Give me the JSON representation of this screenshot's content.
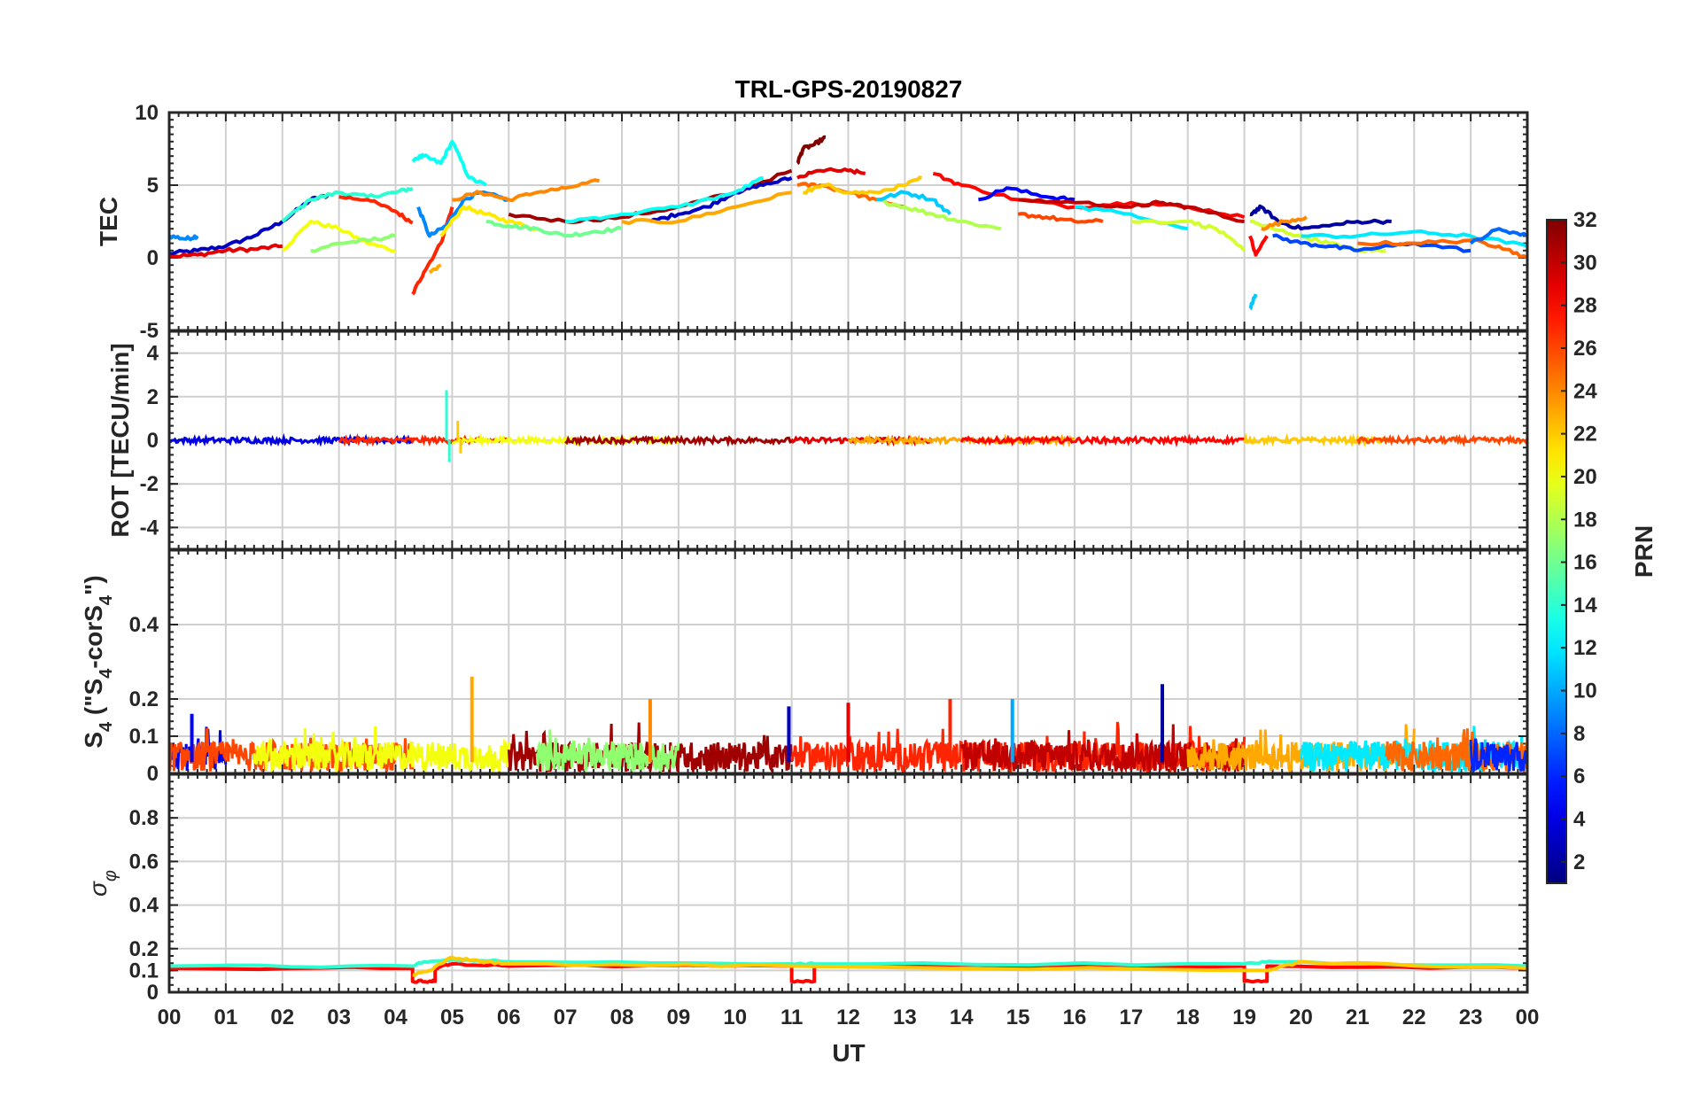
{
  "chart_data": [
    {
      "type": "line",
      "panel": "tec",
      "title": "TRL-GPS-20190827",
      "ylabel": "TEC",
      "ylim": [
        -5,
        10
      ],
      "yticks": [
        "-5",
        "0",
        "5",
        "10"
      ],
      "series": [
        {
          "prn": 3,
          "x": [
            0.0,
            0.5,
            1.0,
            1.5,
            2.0,
            2.5,
            2.8
          ],
          "y": [
            0.3,
            0.5,
            0.8,
            1.5,
            2.5,
            4.0,
            4.3
          ]
        },
        {
          "prn": 9,
          "x": [
            0.0,
            0.3,
            0.5
          ],
          "y": [
            1.5,
            1.3,
            1.5
          ]
        },
        {
          "prn": 29,
          "x": [
            0.0,
            0.5,
            1.0,
            1.5,
            2.0
          ],
          "y": [
            0.1,
            0.2,
            0.5,
            0.6,
            0.8
          ]
        },
        {
          "prn": 14,
          "x": [
            2.0,
            2.5,
            3.0,
            3.5,
            4.0,
            4.3
          ],
          "y": [
            2.5,
            4.0,
            4.5,
            4.2,
            4.5,
            4.8
          ]
        },
        {
          "prn": 27,
          "x": [
            3.0,
            3.5,
            4.0,
            4.3
          ],
          "y": [
            4.2,
            4.0,
            3.2,
            2.4
          ]
        },
        {
          "prn": 20,
          "x": [
            2.0,
            2.5,
            3.0,
            3.5,
            4.0
          ],
          "y": [
            0.5,
            2.5,
            2.0,
            1.0,
            0.5
          ]
        },
        {
          "prn": 17,
          "x": [
            2.5,
            3.0,
            3.5,
            4.0
          ],
          "y": [
            0.5,
            1.0,
            1.2,
            1.5
          ]
        },
        {
          "prn": 13,
          "x": [
            4.3,
            4.5,
            4.8,
            5.0,
            5.3,
            5.6
          ],
          "y": [
            6.8,
            7.0,
            6.5,
            8.0,
            5.5,
            5.0
          ]
        },
        {
          "prn": 27,
          "x": [
            4.3,
            4.5,
            4.8,
            5.0
          ],
          "y": [
            -2.5,
            -1.0,
            1.0,
            3.5
          ]
        },
        {
          "prn": 23,
          "x": [
            4.6,
            4.8
          ],
          "y": [
            -1.0,
            -0.5
          ]
        },
        {
          "prn": 9,
          "x": [
            4.4,
            4.6,
            4.9,
            5.2,
            5.5,
            6.0
          ],
          "y": [
            3.5,
            1.5,
            2.2,
            4.0,
            4.5,
            4.0
          ]
        },
        {
          "prn": 21,
          "x": [
            4.8,
            5.2,
            5.6,
            6.0,
            6.5
          ],
          "y": [
            1.5,
            3.5,
            3.0,
            2.5,
            2.0
          ]
        },
        {
          "prn": 16,
          "x": [
            5.6,
            6.0,
            6.5,
            7.0,
            7.5,
            8.0
          ],
          "y": [
            2.5,
            2.2,
            2.0,
            1.5,
            1.8,
            2.0
          ]
        },
        {
          "prn": 24,
          "x": [
            5.0,
            5.5,
            6.0,
            6.5,
            7.0,
            7.6
          ],
          "y": [
            4.0,
            4.5,
            4.0,
            4.5,
            4.8,
            5.3
          ]
        },
        {
          "prn": 31,
          "x": [
            6.0,
            7.0,
            8.0,
            9.0,
            10.0,
            11.0
          ],
          "y": [
            3.0,
            2.5,
            2.8,
            3.5,
            4.5,
            6.0
          ]
        },
        {
          "prn": 3,
          "x": [
            8.5,
            9.0,
            9.5,
            10.0,
            10.5,
            11.0
          ],
          "y": [
            2.5,
            3.0,
            3.5,
            4.5,
            5.0,
            5.5
          ]
        },
        {
          "prn": 13,
          "x": [
            7.0,
            8.0,
            9.0,
            10.0,
            10.5
          ],
          "y": [
            2.5,
            3.0,
            3.5,
            4.5,
            5.5
          ]
        },
        {
          "prn": 23,
          "x": [
            8.0,
            9.0,
            10.0,
            11.0
          ],
          "y": [
            2.5,
            2.5,
            3.5,
            4.5
          ]
        },
        {
          "prn": 32,
          "x": [
            11.1,
            11.2,
            11.4,
            11.6
          ],
          "y": [
            6.5,
            7.5,
            7.8,
            8.3
          ]
        },
        {
          "prn": 29,
          "x": [
            11.1,
            11.5,
            12.0,
            12.3
          ],
          "y": [
            5.5,
            6.0,
            6.0,
            5.8
          ]
        },
        {
          "prn": 25,
          "x": [
            11.1,
            11.5,
            12.0,
            12.5,
            13.0
          ],
          "y": [
            5.0,
            5.0,
            4.5,
            4.0,
            3.5
          ]
        },
        {
          "prn": 22,
          "x": [
            11.2,
            11.6,
            12.0,
            12.5,
            13.0,
            13.3
          ],
          "y": [
            4.5,
            5.0,
            4.5,
            4.5,
            5.0,
            5.5
          ]
        },
        {
          "prn": 18,
          "x": [
            12.5,
            13.0,
            13.5,
            14.0,
            14.7
          ],
          "y": [
            4.0,
            3.5,
            3.0,
            2.5,
            2.0
          ]
        },
        {
          "prn": 11,
          "x": [
            12.5,
            13.0,
            13.5,
            13.8
          ],
          "y": [
            4.0,
            4.5,
            4.0,
            3.0
          ]
        },
        {
          "prn": 28,
          "x": [
            13.5,
            14.0,
            15.0,
            16.0,
            17.0,
            18.0,
            19.0
          ],
          "y": [
            5.8,
            5.0,
            4.0,
            3.5,
            3.8,
            3.5,
            2.8
          ]
        },
        {
          "prn": 5,
          "x": [
            14.3,
            14.8,
            15.5,
            16.0
          ],
          "y": [
            4.0,
            4.8,
            4.2,
            4.0
          ]
        },
        {
          "prn": 30,
          "x": [
            15.0,
            16.0,
            17.0,
            17.5,
            18.0,
            19.0
          ],
          "y": [
            4.0,
            3.8,
            3.5,
            3.8,
            3.5,
            2.5
          ]
        },
        {
          "prn": 12,
          "x": [
            16.0,
            17.0,
            18.0
          ],
          "y": [
            3.5,
            3.0,
            2.0
          ]
        },
        {
          "prn": 19,
          "x": [
            17.0,
            18.0,
            18.5,
            19.0
          ],
          "y": [
            2.5,
            2.5,
            2.0,
            0.5
          ]
        },
        {
          "prn": 26,
          "x": [
            15.0,
            15.5,
            16.0,
            16.5
          ],
          "y": [
            3.0,
            2.8,
            2.5,
            2.5
          ]
        },
        {
          "prn": 2,
          "x": [
            19.1,
            19.3,
            19.6,
            20.0,
            20.5,
            21.0,
            21.6
          ],
          "y": [
            3.0,
            3.5,
            2.5,
            2.0,
            2.2,
            2.5,
            2.5
          ]
        },
        {
          "prn": 28,
          "x": [
            19.1,
            19.2,
            19.4
          ],
          "y": [
            1.5,
            0.2,
            1.5
          ]
        },
        {
          "prn": 11,
          "x": [
            19.1,
            19.2
          ],
          "y": [
            -3.5,
            -2.5
          ]
        },
        {
          "prn": 19,
          "x": [
            19.1,
            19.5,
            20.0,
            20.5,
            21.0,
            21.5
          ],
          "y": [
            2.5,
            2.0,
            1.5,
            1.0,
            0.5,
            0.5
          ]
        },
        {
          "prn": 24,
          "x": [
            19.3,
            19.7,
            20.1
          ],
          "y": [
            2.0,
            2.5,
            2.8
          ]
        },
        {
          "prn": 7,
          "x": [
            19.5,
            20.0,
            20.5,
            21.0,
            22.0,
            23.0
          ],
          "y": [
            1.5,
            1.0,
            0.8,
            0.5,
            1.0,
            0.5
          ]
        },
        {
          "prn": 12,
          "x": [
            20.0,
            21.0,
            22.0,
            23.0,
            24.0
          ],
          "y": [
            1.5,
            1.5,
            1.8,
            1.5,
            0.8
          ]
        },
        {
          "prn": 25,
          "x": [
            21.0,
            22.0,
            23.0,
            23.5,
            24.0
          ],
          "y": [
            1.0,
            1.0,
            1.2,
            0.8,
            0.0
          ]
        },
        {
          "prn": 8,
          "x": [
            23.0,
            23.5,
            24.0
          ],
          "y": [
            1.0,
            2.0,
            1.5
          ]
        }
      ]
    },
    {
      "type": "line",
      "panel": "rot",
      "ylabel": "ROT [TECU/min]",
      "ylim": [
        -5,
        5
      ],
      "yticks": [
        "-4",
        "-2",
        "0",
        "2",
        "4"
      ],
      "baseline": 0,
      "spikes": [
        {
          "prn": 14,
          "x": 4.9,
          "y": 2.3
        },
        {
          "prn": 14,
          "x": 4.95,
          "y": -1.0
        },
        {
          "prn": 22,
          "x": 5.1,
          "y": 0.9
        },
        {
          "prn": 22,
          "x": 5.15,
          "y": -0.6
        }
      ],
      "segments": [
        {
          "prn": 4,
          "start": 0.0,
          "end": 4.3
        },
        {
          "prn": 27,
          "start": 3.0,
          "end": 6.0
        },
        {
          "prn": 20,
          "start": 5.0,
          "end": 9.0
        },
        {
          "prn": 31,
          "start": 7.0,
          "end": 11.0
        },
        {
          "prn": 29,
          "start": 11.0,
          "end": 13.5
        },
        {
          "prn": 23,
          "start": 12.0,
          "end": 16.0
        },
        {
          "prn": 28,
          "start": 14.0,
          "end": 19.0
        },
        {
          "prn": 22,
          "start": 19.0,
          "end": 21.5
        },
        {
          "prn": 26,
          "start": 21.0,
          "end": 24.0
        }
      ]
    },
    {
      "type": "line",
      "panel": "s4",
      "ylabel": "S4 (\"S4-corS4\")",
      "ylabel_parts": [
        "S",
        "4",
        " (\"S",
        "4",
        "-corS",
        "4",
        "\")"
      ],
      "ylim": [
        0,
        0.6
      ],
      "yticks": [
        "0",
        "0.1",
        "0.2",
        "0.4"
      ],
      "peaks": [
        {
          "prn": 23,
          "x": 5.35,
          "y": 0.26
        },
        {
          "prn": 2,
          "x": 17.55,
          "y": 0.24
        },
        {
          "prn": 24,
          "x": 8.5,
          "y": 0.2
        },
        {
          "prn": 27,
          "x": 13.8,
          "y": 0.2
        },
        {
          "prn": 10,
          "x": 14.9,
          "y": 0.2
        },
        {
          "prn": 29,
          "x": 12.0,
          "y": 0.19
        },
        {
          "prn": 3,
          "x": 10.95,
          "y": 0.18
        },
        {
          "prn": 5,
          "x": 0.4,
          "y": 0.16
        }
      ],
      "bands": [
        {
          "prn": 4,
          "start": 0.0,
          "end": 1.0
        },
        {
          "prn": 26,
          "start": 0.0,
          "end": 4.3
        },
        {
          "prn": 20,
          "start": 1.5,
          "end": 6.0
        },
        {
          "prn": 31,
          "start": 6.0,
          "end": 11.0
        },
        {
          "prn": 17,
          "start": 6.5,
          "end": 9.0
        },
        {
          "prn": 27,
          "start": 11.0,
          "end": 19.0
        },
        {
          "prn": 30,
          "start": 14.0,
          "end": 19.0
        },
        {
          "prn": 23,
          "start": 18.0,
          "end": 22.0
        },
        {
          "prn": 12,
          "start": 20.0,
          "end": 24.0
        },
        {
          "prn": 25,
          "start": 21.5,
          "end": 24.0
        },
        {
          "prn": 6,
          "start": 23.0,
          "end": 24.0
        }
      ]
    },
    {
      "type": "line",
      "panel": "sigma",
      "ylabel": "σφ",
      "ylabel_parts": [
        "σ",
        "φ"
      ],
      "ylim": [
        0,
        1
      ],
      "yticks": [
        "0",
        "0.1",
        "0.2",
        "0.4",
        "0.6",
        "0.8"
      ],
      "series": [
        {
          "prn": 28,
          "x": [
            0.0,
            4.3,
            4.3,
            4.6,
            4.7,
            4.7,
            5.0,
            6.0,
            11.0,
            11.0,
            11.4,
            11.4,
            19.0,
            19.0,
            19.4,
            19.4,
            24.0
          ],
          "y": [
            0.11,
            0.11,
            0.05,
            0.05,
            0.05,
            0.11,
            0.13,
            0.12,
            0.12,
            0.05,
            0.05,
            0.12,
            0.12,
            0.05,
            0.05,
            0.12,
            0.11
          ]
        },
        {
          "prn": 14,
          "x": [
            0.0,
            4.3,
            4.5,
            5.0,
            6.0,
            11.0,
            11.4,
            19.0,
            19.5,
            24.0
          ],
          "y": [
            0.12,
            0.12,
            0.14,
            0.15,
            0.14,
            0.13,
            0.13,
            0.13,
            0.14,
            0.12
          ]
        },
        {
          "prn": 22,
          "x": [
            4.3,
            4.6,
            5.0,
            5.5,
            6.0,
            11.0,
            19.4,
            20.0,
            24.0
          ],
          "y": [
            0.08,
            0.1,
            0.16,
            0.14,
            0.13,
            0.12,
            0.1,
            0.14,
            0.11
          ]
        }
      ]
    }
  ],
  "x_axis": {
    "label": "UT",
    "range": [
      0,
      24
    ],
    "ticks": [
      "00",
      "01",
      "02",
      "03",
      "04",
      "05",
      "06",
      "07",
      "08",
      "09",
      "10",
      "11",
      "12",
      "13",
      "14",
      "15",
      "16",
      "17",
      "18",
      "19",
      "20",
      "21",
      "22",
      "23",
      "00"
    ]
  },
  "colorbar": {
    "label": "PRN",
    "range": [
      1,
      32
    ],
    "colormap": "jet",
    "ticks": [
      "2",
      "4",
      "6",
      "8",
      "10",
      "12",
      "14",
      "16",
      "18",
      "20",
      "22",
      "24",
      "26",
      "28",
      "30",
      "32"
    ]
  },
  "grid": true
}
